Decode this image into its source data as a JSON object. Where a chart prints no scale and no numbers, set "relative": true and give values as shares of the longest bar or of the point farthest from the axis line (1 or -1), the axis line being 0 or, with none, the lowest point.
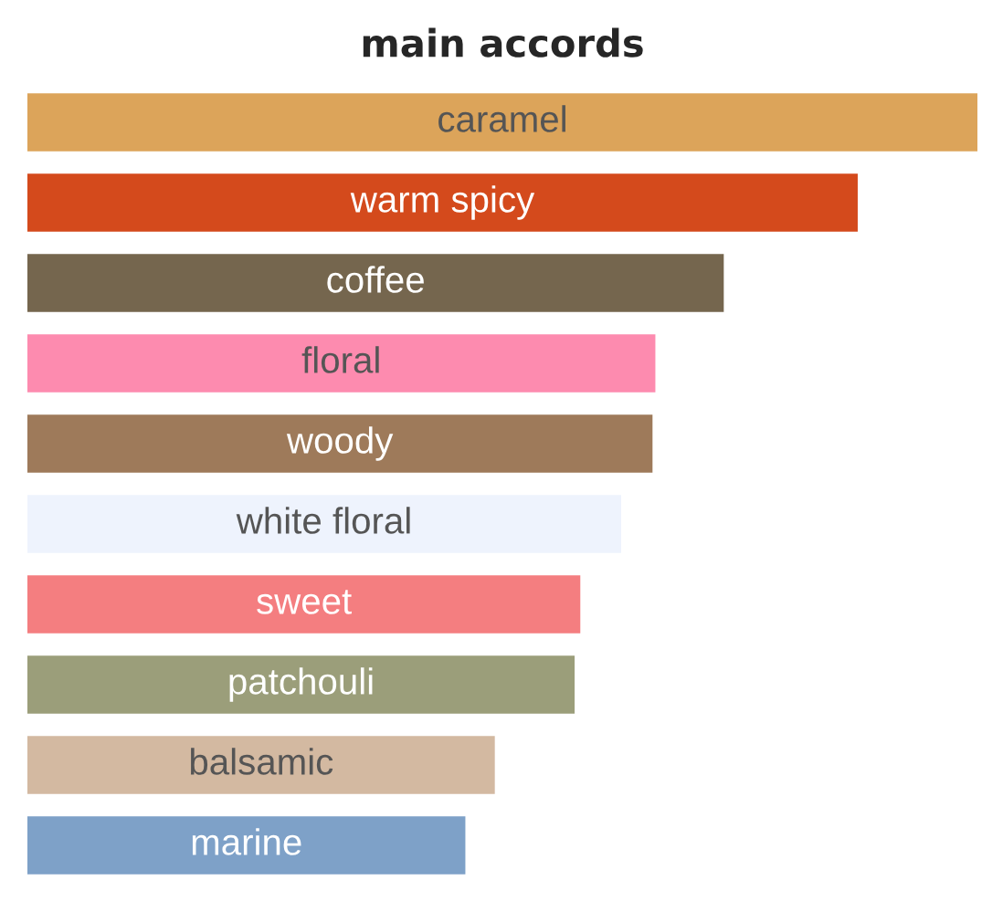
{
  "chart_data": {
    "type": "bar",
    "orientation": "horizontal",
    "relative": true,
    "title": "main accords",
    "categories": [
      "caramel",
      "warm spicy",
      "coffee",
      "floral",
      "woody",
      "white floral",
      "sweet",
      "patchouli",
      "balsamic",
      "marine"
    ],
    "values": [
      1,
      0.874,
      0.733,
      0.661,
      0.658,
      0.625,
      0.582,
      0.576,
      0.492,
      0.461
    ],
    "colors": [
      "#dca45a",
      "#d44a1c",
      "#75664e",
      "#fd8baf",
      "#9e7a5a",
      "#eef3fd",
      "#f47e80",
      "#9b9e7a",
      "#d3b9a1",
      "#7ea1c8"
    ],
    "tick_labels": false
  }
}
